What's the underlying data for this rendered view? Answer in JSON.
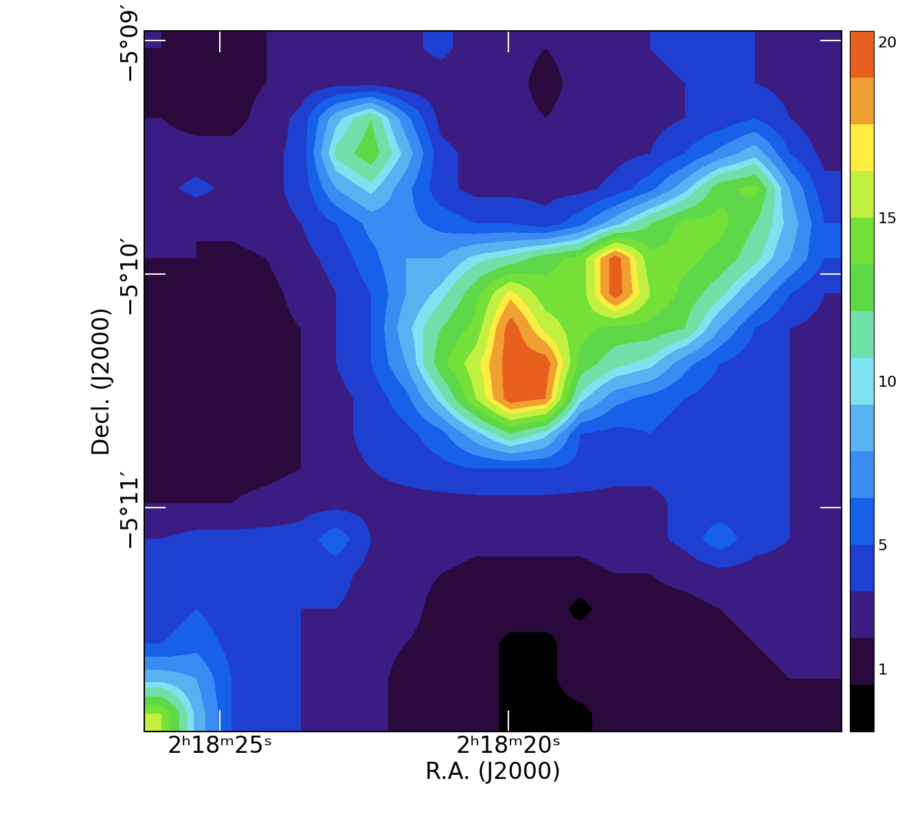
{
  "chart_data": {
    "type": "heatmap",
    "xlabel": "R.A. (J2000)",
    "ylabel": "Decl. (J2000)",
    "xlim": [
      26.31,
      14.23
    ],
    "ylim": [
      -311.96,
      -308.96
    ],
    "xticks": [
      {
        "value": 25,
        "label": "2ʰ18ᵐ25ˢ"
      },
      {
        "value": 20,
        "label": "2ʰ18ᵐ20ˢ"
      }
    ],
    "yticks": [
      {
        "value": -309,
        "label": "−5°09′"
      },
      {
        "value": -310,
        "label": "−5°10′"
      },
      {
        "value": -311,
        "label": "−5°11′"
      }
    ],
    "clim": [
      -1.5,
      20.3
    ],
    "cticks": [
      1,
      5,
      10,
      15,
      20
    ],
    "boundaries": [
      -1.5,
      0.5,
      2,
      3.5,
      5,
      6.5,
      8,
      9.5,
      10.5,
      12,
      13.5,
      15,
      16.5,
      17.5,
      19,
      20.3
    ],
    "cells": [
      [
        2,
        1.5,
        1.5,
        2,
        2.5,
        2.5,
        2.5,
        3,
        4,
        2.5,
        2.5,
        2,
        2.5,
        2.5,
        3.5,
        4,
        4,
        3.5,
        3,
        2
      ],
      [
        1.5,
        1.5,
        1.5,
        2,
        2.5,
        3,
        3,
        2.5,
        2.5,
        2.5,
        2.5,
        1.5,
        2.5,
        2.5,
        3,
        3.5,
        4,
        3.5,
        3,
        2
      ],
      [
        2,
        1.5,
        1.5,
        2.5,
        4,
        9,
        12,
        7,
        3,
        2.5,
        2.5,
        2,
        2.5,
        2.5,
        3,
        3.5,
        4,
        5,
        3.5,
        2.5
      ],
      [
        2.5,
        2.5,
        2.5,
        3,
        4,
        11,
        13,
        9,
        4,
        3,
        2.5,
        2.5,
        2.5,
        3,
        3.5,
        5,
        7,
        9,
        5,
        3
      ],
      [
        3,
        4,
        3,
        3,
        4,
        8,
        10,
        7,
        4,
        3,
        3,
        3,
        3,
        4,
        6,
        9,
        13,
        14,
        8,
        4
      ],
      [
        2,
        2,
        2.5,
        3,
        3.5,
        5,
        7,
        7,
        6,
        5,
        5,
        4,
        6,
        9,
        12,
        14,
        14,
        12,
        9,
        5
      ],
      [
        2,
        2,
        1.5,
        2,
        3,
        4,
        6,
        8,
        8,
        10,
        11,
        13,
        14,
        20,
        14,
        14,
        13,
        11,
        8,
        5
      ],
      [
        1.5,
        1.5,
        1.5,
        1.5,
        2.5,
        3.5,
        5,
        8,
        10,
        13,
        17,
        14,
        14,
        20,
        15,
        13,
        11,
        8,
        5,
        3.5
      ],
      [
        1.5,
        1,
        1.5,
        1.5,
        2,
        3.5,
        5,
        9,
        12,
        14,
        20,
        16,
        14,
        13,
        13,
        12,
        8,
        5,
        3.5,
        3
      ],
      [
        1.5,
        1.5,
        1.5,
        1.5,
        2,
        3.5,
        5,
        8,
        13,
        16,
        20,
        20,
        13,
        11,
        10,
        7,
        5,
        4,
        3.5,
        3
      ],
      [
        1.5,
        1.5,
        1.5,
        1.5,
        2,
        3,
        4,
        6,
        10,
        15,
        20,
        19,
        10,
        7,
        6,
        5,
        4,
        4,
        3.5,
        3
      ],
      [
        1.5,
        1.5,
        1.5,
        1.5,
        2,
        3,
        4,
        4.5,
        6,
        9,
        12,
        10,
        5,
        4.5,
        5,
        4,
        4,
        4,
        3.5,
        3
      ],
      [
        1.5,
        1.5,
        1.5,
        1.5,
        2,
        3,
        3.5,
        4,
        4.5,
        5,
        5,
        5,
        4.5,
        4,
        4,
        4,
        4,
        4,
        3.5,
        3
      ],
      [
        2,
        2,
        2,
        2.5,
        3,
        3,
        3,
        3,
        3,
        3,
        3,
        3,
        3,
        3,
        3,
        4,
        4,
        4,
        3.5,
        3
      ],
      [
        3.5,
        4,
        4,
        4,
        4,
        6,
        3.5,
        3,
        3,
        2.5,
        2.5,
        2.5,
        2.5,
        3,
        3,
        4,
        6,
        4,
        3.5,
        3
      ],
      [
        4,
        4.5,
        4,
        4,
        4,
        4,
        3,
        2.5,
        2,
        1.5,
        1.5,
        1.5,
        1.5,
        2,
        2,
        2.5,
        3,
        3,
        3,
        3
      ],
      [
        4,
        5,
        4,
        3.5,
        3.5,
        3.5,
        3,
        2.5,
        1.5,
        1.5,
        1.5,
        1.5,
        0,
        1.5,
        1.5,
        1.5,
        2,
        2.5,
        3,
        3
      ],
      [
        5,
        6,
        4.5,
        4,
        3.5,
        3,
        2.5,
        2,
        1.5,
        1.5,
        0,
        0,
        1.5,
        1.5,
        1.5,
        1.5,
        1.5,
        2,
        2.5,
        2.5
      ],
      [
        9,
        8,
        5,
        4,
        3.5,
        3,
        2.5,
        1.5,
        1.5,
        1.5,
        0,
        0,
        1.5,
        1.5,
        1.5,
        1.5,
        1.5,
        1.5,
        2,
        2
      ],
      [
        15,
        9,
        5,
        4,
        3.5,
        3,
        2.5,
        1.5,
        1.5,
        1.5,
        0,
        0,
        0,
        1.5,
        1.5,
        1.5,
        1.5,
        1.5,
        1.5,
        1.5
      ]
    ]
  }
}
